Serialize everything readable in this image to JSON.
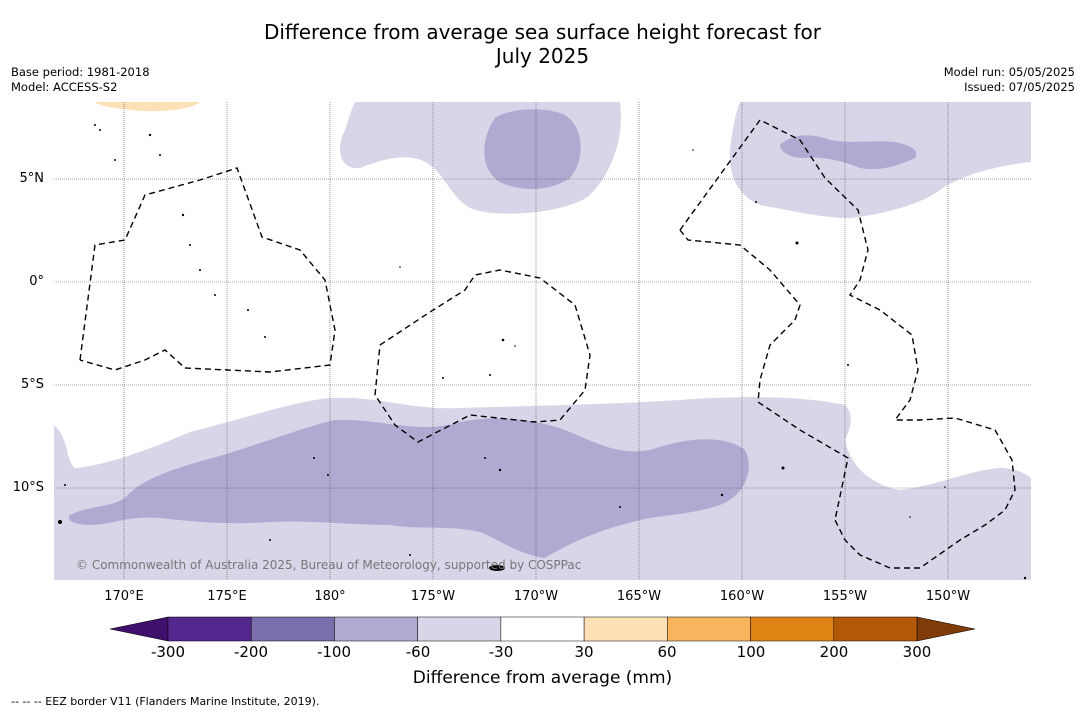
{
  "title_line1": "Difference from average sea surface height forecast for",
  "title_line2": "July 2025",
  "meta": {
    "base_period": "Base period: 1981-2018",
    "model": "Model: ACCESS-S2",
    "model_run": "Model run: 05/05/2025",
    "issued": "Issued: 07/05/2025"
  },
  "map": {
    "lat_labels": [
      "5°N",
      "0°",
      "5°S",
      "10°S"
    ],
    "lon_labels": [
      "170°E",
      "175°E",
      "180°",
      "175°W",
      "170°W",
      "165°W",
      "160°W",
      "155°W",
      "150°W"
    ],
    "copyright": "© Commonwealth of Australia 2025, Bureau of Meteorology, supported by COSPPac",
    "colors": {
      "light_purple": "#d6d6e8",
      "mid_purple": "#b0a9d1",
      "light_orange": "#fde0b6",
      "eez_line": "#000000"
    }
  },
  "colorbar": {
    "ticks": [
      "-300",
      "-200",
      "-100",
      "-60",
      "-30",
      "30",
      "60",
      "100",
      "200",
      "300"
    ],
    "colors": [
      "#3f0f6c",
      "#54278f",
      "#7b6ead",
      "#b0a9d1",
      "#d6d6e8",
      "#ffffff",
      "#fde0b6",
      "#f9b55e",
      "#e08416",
      "#b35806",
      "#7f3b08"
    ],
    "label": "Difference from average (mm)"
  },
  "legend": {
    "eez": "--  --  -- EEZ border V11 (Flanders Marine Institute, 2019)."
  }
}
